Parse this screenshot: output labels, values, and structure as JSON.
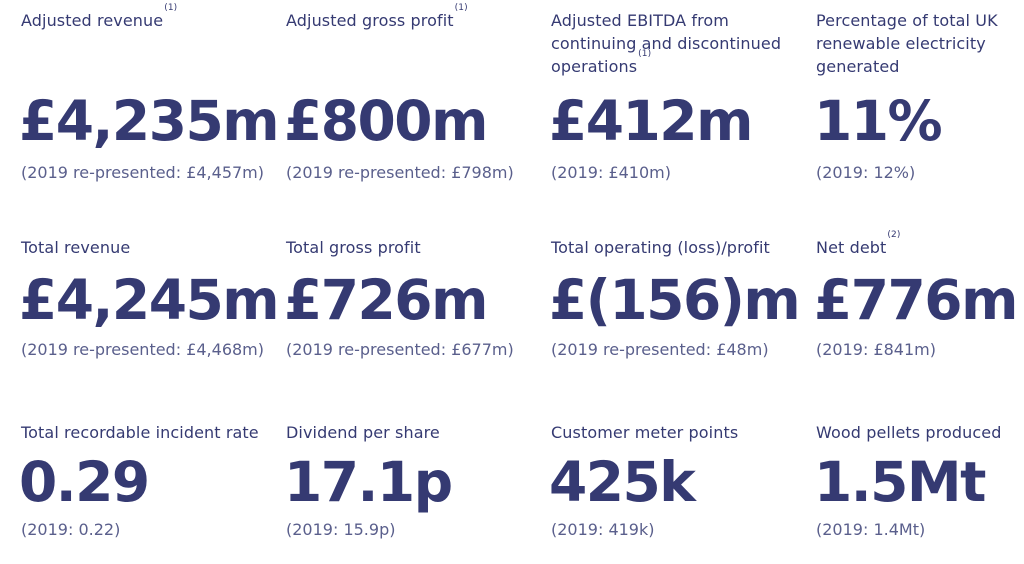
{
  "kpis": [
    {
      "label": "Adjusted revenue",
      "sup": "(1)",
      "value": "£4,235m",
      "comparison": "(2019 re-presented: £4,457m)"
    },
    {
      "label": "Adjusted gross profit",
      "sup": "(1)",
      "value": "£800m",
      "comparison": "(2019 re-presented: £798m)"
    },
    {
      "label": "Adjusted EBITDA from continuing and discontinued operations",
      "sup": "(1)",
      "value": "£412m",
      "comparison": "(2019: £410m)"
    },
    {
      "label": "Percentage of total UK renewable electricity generated",
      "sup": "",
      "value": "11%",
      "comparison": "(2019: 12%)"
    },
    {
      "label": "Total revenue",
      "sup": "",
      "value": "£4,245m",
      "comparison": "(2019 re-presented: £4,468m)"
    },
    {
      "label": "Total gross profit",
      "sup": "",
      "value": "£726m",
      "comparison": "(2019 re-presented: £677m)"
    },
    {
      "label": "Total operating (loss)/profit",
      "sup": "",
      "value": "£(156)m",
      "comparison": "(2019 re-presented: £48m)"
    },
    {
      "label": "Net debt",
      "sup": "(2)",
      "value": "£776m",
      "comparison": "(2019: £841m)"
    },
    {
      "label": "Total recordable incident rate",
      "sup": "",
      "value": "0.29",
      "comparison": "(2019: 0.22)"
    },
    {
      "label": "Dividend per share",
      "sup": "",
      "value": "17.1p",
      "comparison": "(2019: 15.9p)"
    },
    {
      "label": "Customer meter points",
      "sup": "",
      "value": "425k",
      "comparison": "(2019: 419k)"
    },
    {
      "label": "Wood pellets produced",
      "sup": "",
      "value": "1.5Mt",
      "comparison": "(2019: 1.4Mt)"
    }
  ],
  "colors": {
    "primary": "#353a72",
    "secondary": "#5a5f8c",
    "background": "#ffffff"
  }
}
